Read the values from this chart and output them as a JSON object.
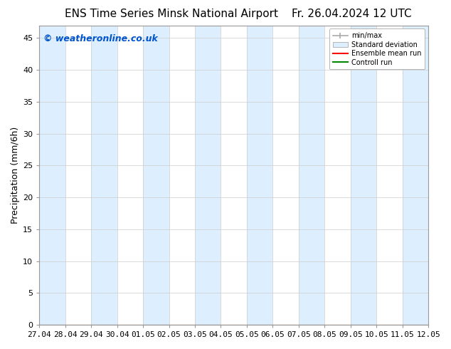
{
  "title_left": "ENS Time Series Minsk National Airport",
  "title_right": "Fr. 26.04.2024 12 UTC",
  "ylabel": "Precipitation (mm/6h)",
  "watermark": "© weatheronline.co.uk",
  "watermark_color": "#0055cc",
  "x_tick_labels": [
    "27.04",
    "28.04",
    "29.04",
    "30.04",
    "01.05",
    "02.05",
    "03.05",
    "04.05",
    "05.05",
    "06.05",
    "07.05",
    "08.05",
    "09.05",
    "10.05",
    "11.05",
    "12.05"
  ],
  "ylim": [
    0,
    47
  ],
  "yticks": [
    0,
    5,
    10,
    15,
    20,
    25,
    30,
    35,
    40,
    45
  ],
  "bg_color": "#ffffff",
  "plot_bg_color": "#ffffff",
  "shaded_col_color": "#ddeeff",
  "n_labels": 16,
  "legend_labels": [
    "min/max",
    "Standard deviation",
    "Ensemble mean run",
    "Controll run"
  ],
  "legend_colors_line": [
    "#aaaaaa",
    "#bbccdd",
    "#ff0000",
    "#008800"
  ],
  "grid_color": "#cccccc",
  "spine_color": "#999999",
  "tick_label_fontsize": 8,
  "axis_label_fontsize": 9,
  "title_fontsize": 11,
  "watermark_fontsize": 9
}
